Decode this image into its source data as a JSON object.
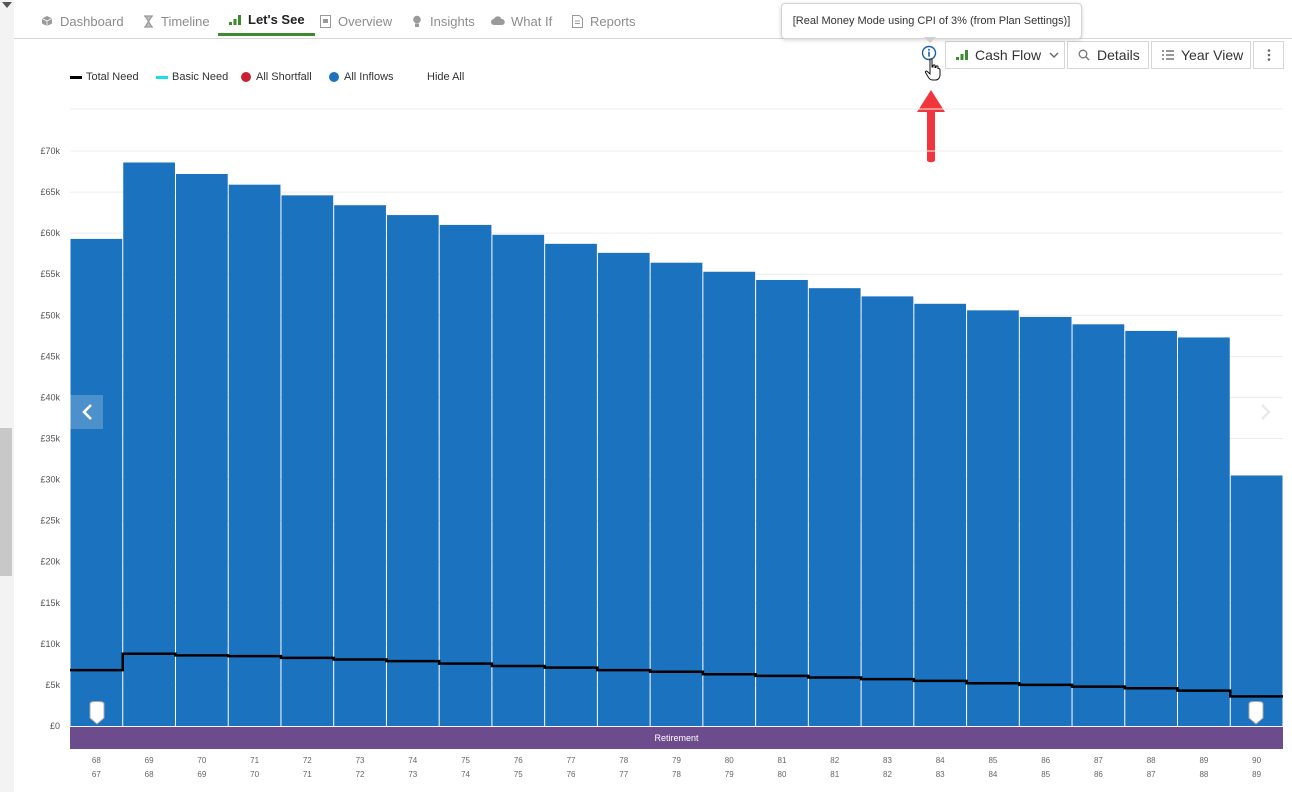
{
  "tabs": [
    {
      "label": "Dashboard",
      "icon": "cube-icon"
    },
    {
      "label": "Timeline",
      "icon": "hourglass-icon"
    },
    {
      "label": "Let's See",
      "icon": "bar-chart-icon",
      "active": true
    },
    {
      "label": "Overview",
      "icon": "document-icon"
    },
    {
      "label": "Insights",
      "icon": "lightbulb-icon"
    },
    {
      "label": "What If",
      "icon": "cloud-icon"
    },
    {
      "label": "Reports",
      "icon": "report-icon"
    }
  ],
  "tooltip": {
    "text": "[Real Money Mode using CPI of 3% (from Plan Settings)]"
  },
  "toolbar": {
    "cash_flow_label": "Cash Flow",
    "details_label": "Details",
    "year_view_label": "Year View"
  },
  "legend": {
    "items": [
      {
        "label": "Total Need",
        "marker": "line",
        "color": "#000000"
      },
      {
        "label": "Basic Need",
        "marker": "line",
        "color": "#18e0e8"
      },
      {
        "label": "All Shortfall",
        "marker": "dot",
        "color": "#c8202f"
      },
      {
        "label": "All Inflows",
        "marker": "dot",
        "color": "#1b72be"
      }
    ],
    "hide_all_label": "Hide All"
  },
  "colors": {
    "inflows_bar": "#1b72be",
    "total_need_line": "#000000",
    "retirement_band": "#6d4c8e",
    "active_tab_underline": "#3e8a2e",
    "annotation_arrow": "#f0353c"
  },
  "chart_data": {
    "type": "bar",
    "ylim": [
      0,
      70000
    ],
    "yticks": [
      "£0",
      "£5k",
      "£10k",
      "£15k",
      "£20k",
      "£25k",
      "£30k",
      "£35k",
      "£40k",
      "£45k",
      "£50k",
      "£55k",
      "£60k",
      "£65k",
      "£70k"
    ],
    "categories": [
      "68",
      "69",
      "70",
      "71",
      "72",
      "73",
      "74",
      "75",
      "76",
      "77",
      "78",
      "79",
      "80",
      "81",
      "82",
      "83",
      "84",
      "85",
      "86",
      "87",
      "88",
      "89",
      "90"
    ],
    "categories_secondary": [
      "67",
      "68",
      "69",
      "70",
      "71",
      "72",
      "73",
      "74",
      "75",
      "76",
      "77",
      "78",
      "79",
      "80",
      "81",
      "82",
      "83",
      "84",
      "85",
      "86",
      "87",
      "88",
      "89"
    ],
    "series": [
      {
        "name": "All Inflows",
        "type": "bar",
        "values": [
          59300,
          68600,
          67200,
          65900,
          64600,
          63400,
          62200,
          61000,
          59800,
          58700,
          57600,
          56400,
          55300,
          54300,
          53300,
          52300,
          51400,
          50600,
          49800,
          48900,
          48100,
          47300,
          30500
        ]
      },
      {
        "name": "Total Need",
        "type": "step-line",
        "values": [
          6800,
          8800,
          8600,
          8500,
          8300,
          8100,
          7900,
          7600,
          7300,
          7100,
          6800,
          6600,
          6300,
          6100,
          5900,
          5700,
          5500,
          5200,
          5000,
          4800,
          4600,
          4300,
          3600
        ]
      }
    ],
    "band": {
      "label": "Retirement"
    },
    "legend_position": "top-left",
    "grid": true
  }
}
